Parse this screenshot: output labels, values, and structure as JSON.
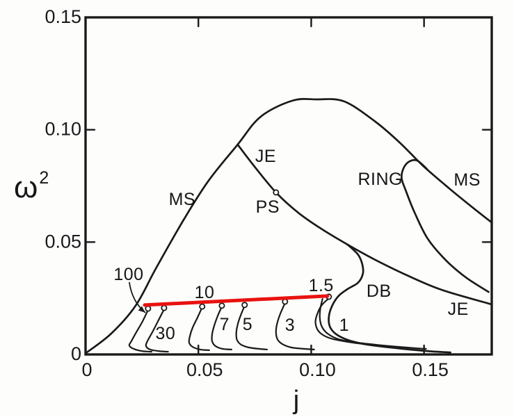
{
  "colors": {
    "ink": "#1a1a1a",
    "accent_red": "#e8120f",
    "paper": "#fdfdfc"
  },
  "chart_data": {
    "type": "line",
    "title": "",
    "xlabel": "j",
    "ylabel": "ω²",
    "ylabel_parts": {
      "base": "ω",
      "sup": "2"
    },
    "xlim": [
      0,
      0.18
    ],
    "ylim": [
      0,
      0.15
    ],
    "grid": false,
    "x_ticks": [
      {
        "v": 0.0,
        "label": "0"
      },
      {
        "v": 0.05,
        "label": "0.05"
      },
      {
        "v": 0.1,
        "label": "0.10"
      },
      {
        "v": 0.15,
        "label": "0.15"
      }
    ],
    "y_ticks": [
      {
        "v": 0.0,
        "label": "0"
      },
      {
        "v": 0.05,
        "label": "0.05"
      },
      {
        "v": 0.1,
        "label": "0.10"
      },
      {
        "v": 0.15,
        "label": "0.15"
      }
    ],
    "series": [
      {
        "name": "MS",
        "kind": "main",
        "points": [
          [
            0.0,
            0.0005
          ],
          [
            0.0114,
            0.0093
          ],
          [
            0.0222,
            0.0217
          ],
          [
            0.0314,
            0.0387
          ],
          [
            0.0437,
            0.0603
          ],
          [
            0.0545,
            0.0773
          ],
          [
            0.0674,
            0.0934
          ],
          [
            0.0776,
            0.1058
          ],
          [
            0.0915,
            0.1129
          ],
          [
            0.1023,
            0.1135
          ],
          [
            0.1146,
            0.1126
          ],
          [
            0.1284,
            0.1036
          ],
          [
            0.1392,
            0.0943
          ],
          [
            0.1494,
            0.0841
          ],
          [
            0.1608,
            0.0742
          ],
          [
            0.1709,
            0.0659
          ],
          [
            0.1799,
            0.0588
          ]
        ]
      },
      {
        "name": "JE",
        "kind": "main",
        "points": [
          [
            0.0674,
            0.0934
          ],
          [
            0.0745,
            0.0841
          ],
          [
            0.0844,
            0.0721
          ],
          [
            0.0946,
            0.0628
          ],
          [
            0.1053,
            0.0554
          ],
          [
            0.1161,
            0.0489
          ],
          [
            0.1284,
            0.0421
          ],
          [
            0.1423,
            0.0353
          ],
          [
            0.1577,
            0.0288
          ],
          [
            0.1799,
            0.0223
          ]
        ]
      },
      {
        "name": "RING",
        "kind": "main",
        "points": [
          [
            0.1512,
            0.0826
          ],
          [
            0.1469,
            0.0863
          ],
          [
            0.1432,
            0.0857
          ],
          [
            0.1408,
            0.0826
          ],
          [
            0.1401,
            0.0783
          ],
          [
            0.142,
            0.0727
          ],
          [
            0.1457,
            0.0634
          ],
          [
            0.1515,
            0.0517
          ],
          [
            0.1595,
            0.0421
          ],
          [
            0.1685,
            0.0343
          ],
          [
            0.1786,
            0.0278
          ]
        ]
      },
      {
        "name": "DB",
        "kind": "main",
        "points": [
          [
            0.1161,
            0.0489
          ],
          [
            0.1207,
            0.0445
          ],
          [
            0.1226,
            0.0402
          ],
          [
            0.1229,
            0.0359
          ],
          [
            0.1207,
            0.0319
          ],
          [
            0.1161,
            0.0291
          ],
          [
            0.1121,
            0.026
          ],
          [
            0.1093,
            0.0217
          ],
          [
            0.1078,
            0.0167
          ],
          [
            0.1084,
            0.0121
          ],
          [
            0.1115,
            0.0087
          ],
          [
            0.117,
            0.0062
          ],
          [
            0.1253,
            0.0043
          ],
          [
            0.1377,
            0.0028
          ],
          [
            0.1515,
            0.0015
          ],
          [
            0.1617,
            0.0009
          ]
        ]
      },
      {
        "name": "seq-100",
        "kind": "sequence",
        "points": [
          [
            0.0277,
            0.0198
          ],
          [
            0.0253,
            0.0148
          ],
          [
            0.0225,
            0.0099
          ],
          [
            0.0203,
            0.0059
          ],
          [
            0.0194,
            0.004
          ],
          [
            0.0213,
            0.0025
          ],
          [
            0.0249,
            0.0015
          ],
          [
            0.0293,
            0.0012
          ]
        ]
      },
      {
        "name": "seq-30",
        "kind": "sequence",
        "points": [
          [
            0.0348,
            0.0201
          ],
          [
            0.0323,
            0.0152
          ],
          [
            0.0296,
            0.0099
          ],
          [
            0.0274,
            0.0059
          ],
          [
            0.0268,
            0.0037
          ],
          [
            0.0286,
            0.0022
          ],
          [
            0.0323,
            0.0015
          ],
          [
            0.0366,
            0.0012
          ]
        ]
      },
      {
        "name": "seq-10",
        "kind": "sequence",
        "points": [
          [
            0.0517,
            0.021
          ],
          [
            0.0496,
            0.0164
          ],
          [
            0.0474,
            0.0118
          ],
          [
            0.0462,
            0.008
          ],
          [
            0.0459,
            0.0053
          ],
          [
            0.0474,
            0.0034
          ],
          [
            0.0508,
            0.0022
          ],
          [
            0.0548,
            0.0019
          ]
        ]
      },
      {
        "name": "seq-7",
        "kind": "sequence",
        "points": [
          [
            0.0604,
            0.0213
          ],
          [
            0.0585,
            0.017
          ],
          [
            0.057,
            0.0127
          ],
          [
            0.0561,
            0.009
          ],
          [
            0.0561,
            0.0059
          ],
          [
            0.0576,
            0.0037
          ],
          [
            0.0607,
            0.0025
          ],
          [
            0.0647,
            0.0022
          ]
        ]
      },
      {
        "name": "seq-5",
        "kind": "sequence",
        "points": [
          [
            0.0705,
            0.0217
          ],
          [
            0.0687,
            0.0173
          ],
          [
            0.0674,
            0.0133
          ],
          [
            0.0668,
            0.0096
          ],
          [
            0.0671,
            0.0065
          ],
          [
            0.069,
            0.0043
          ],
          [
            0.0724,
            0.0031
          ],
          [
            0.0767,
            0.0025
          ],
          [
            0.0804,
            0.0022
          ]
        ]
      },
      {
        "name": "seq-3",
        "kind": "sequence",
        "points": [
          [
            0.0884,
            0.0229
          ],
          [
            0.0865,
            0.0186
          ],
          [
            0.085,
            0.0142
          ],
          [
            0.0844,
            0.0102
          ],
          [
            0.085,
            0.0068
          ],
          [
            0.0872,
            0.0046
          ],
          [
            0.0912,
            0.0031
          ],
          [
            0.0967,
            0.0025
          ],
          [
            0.1013,
            0.0022
          ]
        ]
      },
      {
        "name": "seq-1.5",
        "kind": "sequence",
        "points": [
          [
            0.1075,
            0.0247
          ],
          [
            0.1047,
            0.022
          ],
          [
            0.1029,
            0.0186
          ],
          [
            0.1019,
            0.0148
          ],
          [
            0.1026,
            0.0114
          ],
          [
            0.1047,
            0.009
          ],
          [
            0.1087,
            0.0071
          ],
          [
            0.1161,
            0.0056
          ],
          [
            0.1266,
            0.0043
          ],
          [
            0.1334,
            0.0037
          ]
        ]
      },
      {
        "name": "seq-1",
        "kind": "sequence",
        "points": [
          [
            0.105,
            0.0247
          ],
          [
            0.1041,
            0.0207
          ],
          [
            0.1038,
            0.0164
          ],
          [
            0.1047,
            0.0124
          ],
          [
            0.1072,
            0.0093
          ],
          [
            0.1121,
            0.0068
          ],
          [
            0.1201,
            0.0053
          ],
          [
            0.1318,
            0.004
          ],
          [
            0.1457,
            0.0028
          ],
          [
            0.1509,
            0.0025
          ]
        ]
      }
    ],
    "terminal_line": {
      "name": "red-terminal-line",
      "color_key": "accent_red",
      "from": [
        0.0262,
        0.022
      ],
      "to": [
        0.1072,
        0.026
      ]
    },
    "markers": [
      {
        "name": "ps-point",
        "j": 0.0844,
        "w2": 0.0721
      },
      {
        "name": "endpoint-100",
        "j": 0.0277,
        "w2": 0.0204
      },
      {
        "name": "endpoint-30",
        "j": 0.0348,
        "w2": 0.0207
      },
      {
        "name": "endpoint-10",
        "j": 0.0517,
        "w2": 0.0213
      },
      {
        "name": "endpoint-7",
        "j": 0.0604,
        "w2": 0.0217
      },
      {
        "name": "endpoint-5",
        "j": 0.0705,
        "w2": 0.022
      },
      {
        "name": "endpoint-3",
        "j": 0.0884,
        "w2": 0.0235
      },
      {
        "name": "endpoint-1.5",
        "j": 0.1078,
        "w2": 0.0257
      }
    ],
    "curve_labels": [
      {
        "text": "MS",
        "j": 0.0428,
        "w2": 0.0693
      },
      {
        "text": "JE",
        "j": 0.0798,
        "w2": 0.0885
      },
      {
        "text": "PS",
        "j": 0.0807,
        "w2": 0.0659
      },
      {
        "text": "RING",
        "j": 0.1306,
        "w2": 0.0783
      },
      {
        "text": "MS",
        "j": 0.1691,
        "w2": 0.0779
      },
      {
        "text": "DB",
        "j": 0.13,
        "w2": 0.0285
      },
      {
        "text": "JE",
        "j": 0.1651,
        "w2": 0.0204
      },
      {
        "text": "100",
        "j": 0.0191,
        "w2": 0.0359
      },
      {
        "text": "30",
        "j": 0.0354,
        "w2": 0.0096
      },
      {
        "text": "10",
        "j": 0.0527,
        "w2": 0.0278
      },
      {
        "text": "7",
        "j": 0.0616,
        "w2": 0.0136
      },
      {
        "text": "5",
        "j": 0.0718,
        "w2": 0.0136
      },
      {
        "text": "3",
        "j": 0.0906,
        "w2": 0.0133
      },
      {
        "text": "1.5",
        "j": 0.1044,
        "w2": 0.0309
      },
      {
        "text": "1",
        "j": 0.1146,
        "w2": 0.0133
      }
    ],
    "annotation_arrow": {
      "for": "100",
      "from": [
        0.0194,
        0.0322
      ],
      "ctrl": [
        0.0206,
        0.0235
      ],
      "to": [
        0.0265,
        0.0186
      ]
    }
  }
}
